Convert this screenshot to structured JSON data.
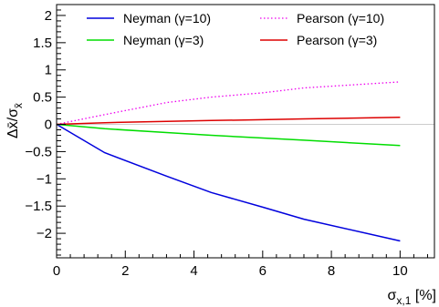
{
  "chart_data": {
    "type": "line",
    "xlabel": "σ",
    "xlabel_sub": "x,1",
    "xlabel_unit": " [%]",
    "ylabel": "Δx̄/σ",
    "ylabel_sub": "x̄",
    "xlim": [
      0,
      11
    ],
    "ylim": [
      -2.45,
      2.2
    ],
    "x_ticks": [
      0,
      2,
      4,
      6,
      8,
      10
    ],
    "x_tick_labels": [
      "0",
      "2",
      "4",
      "6",
      "8",
      "10"
    ],
    "y_ticks": [
      -2,
      -1.5,
      -1,
      -0.5,
      0,
      0.5,
      1,
      1.5,
      2
    ],
    "y_tick_labels": [
      "−2",
      "−1.5",
      "−1",
      "−0.5",
      "0",
      "0.5",
      "1",
      "1.5",
      "2"
    ],
    "reference_line_y": 0,
    "grid": false,
    "legend_position": "top",
    "series": [
      {
        "name": "Neyman (γ=10)",
        "color": "#0000dd",
        "style": "solid",
        "x": [
          0,
          1.4,
          3.2,
          4.5,
          6,
          7.2,
          10
        ],
        "values": [
          0,
          -0.52,
          -0.95,
          -1.25,
          -1.52,
          -1.74,
          -2.14
        ]
      },
      {
        "name": "Pearson (γ=10)",
        "color": "#ee00ee",
        "style": "dotted",
        "x": [
          0,
          1.4,
          3.2,
          4.5,
          6,
          7.2,
          10
        ],
        "values": [
          0,
          0.18,
          0.4,
          0.5,
          0.58,
          0.67,
          0.78
        ]
      },
      {
        "name": "Neyman (γ=3)",
        "color": "#00dd00",
        "style": "solid",
        "x": [
          0,
          1.4,
          3.2,
          4.5,
          6,
          7.2,
          10
        ],
        "values": [
          0,
          -0.08,
          -0.15,
          -0.2,
          -0.25,
          -0.29,
          -0.39
        ]
      },
      {
        "name": "Pearson (γ=3)",
        "color": "#dd0000",
        "style": "solid",
        "x": [
          0,
          1.4,
          3.2,
          4.5,
          6,
          7.2,
          10
        ],
        "values": [
          0,
          0.03,
          0.055,
          0.07,
          0.085,
          0.1,
          0.13
        ]
      }
    ]
  }
}
